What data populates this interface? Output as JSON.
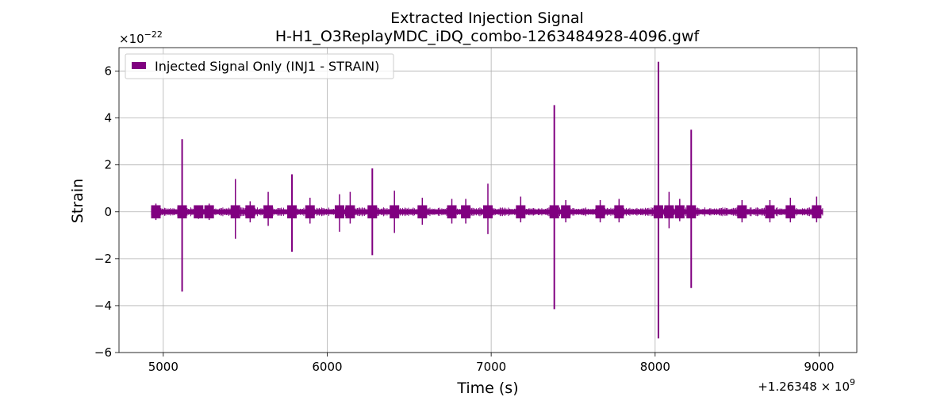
{
  "chart_data": {
    "type": "line",
    "title": "Extracted Injection Signal",
    "subtitle": "H-H1_O3ReplayMDC_iDQ_combo-1263484928-4096.gwf",
    "xlabel": "Time (s)",
    "ylabel": "Strain",
    "x_offset_label": "+1.26348 × 10",
    "x_offset_exponent": "9",
    "y_scale_label": "×10",
    "y_scale_exponent": "−22",
    "xlim": [
      4730,
      9230
    ],
    "ylim": [
      -6.0,
      7.0
    ],
    "x_ticks": [
      5000,
      6000,
      7000,
      8000,
      9000
    ],
    "x_tick_labels": [
      "5000",
      "6000",
      "7000",
      "8000",
      "9000"
    ],
    "y_ticks": [
      -6,
      -4,
      -2,
      0,
      2,
      4,
      6
    ],
    "y_tick_labels": [
      "−6",
      "−4",
      "−2",
      "0",
      "2",
      "4",
      "6"
    ],
    "grid": true,
    "legend_position": "top-left",
    "series": [
      {
        "name": "Injected Signal Only (INJ1 - STRAIN)",
        "color": "#800080",
        "x_range": [
          4928,
          9024
        ],
        "background_amplitude": 0.1,
        "spikes": [
          {
            "x": 4955,
            "max": 0.35,
            "min": -0.35
          },
          {
            "x": 5115,
            "max": 3.1,
            "min": -3.4
          },
          {
            "x": 5215,
            "max": 0.25,
            "min": -0.3
          },
          {
            "x": 5280,
            "max": 0.35,
            "min": -0.35
          },
          {
            "x": 5440,
            "max": 1.4,
            "min": -1.15
          },
          {
            "x": 5530,
            "max": 0.45,
            "min": -0.45
          },
          {
            "x": 5640,
            "max": 0.85,
            "min": -0.6
          },
          {
            "x": 5785,
            "max": 1.6,
            "min": -1.7
          },
          {
            "x": 5895,
            "max": 0.6,
            "min": -0.5
          },
          {
            "x": 6075,
            "max": 0.75,
            "min": -0.85
          },
          {
            "x": 6140,
            "max": 0.85,
            "min": -0.5
          },
          {
            "x": 6275,
            "max": 1.85,
            "min": -1.85
          },
          {
            "x": 6410,
            "max": 0.9,
            "min": -0.9
          },
          {
            "x": 6580,
            "max": 0.6,
            "min": -0.55
          },
          {
            "x": 6760,
            "max": 0.55,
            "min": -0.5
          },
          {
            "x": 6845,
            "max": 0.55,
            "min": -0.5
          },
          {
            "x": 6980,
            "max": 1.2,
            "min": -0.95
          },
          {
            "x": 7180,
            "max": 0.65,
            "min": -0.45
          },
          {
            "x": 7385,
            "max": 4.55,
            "min": -4.15
          },
          {
            "x": 7455,
            "max": 0.5,
            "min": -0.45
          },
          {
            "x": 7665,
            "max": 0.5,
            "min": -0.45
          },
          {
            "x": 7780,
            "max": 0.55,
            "min": -0.45
          },
          {
            "x": 8020,
            "max": 6.4,
            "min": -5.4
          },
          {
            "x": 8085,
            "max": 0.85,
            "min": -0.7
          },
          {
            "x": 8150,
            "max": 0.55,
            "min": -0.4
          },
          {
            "x": 8220,
            "max": 3.5,
            "min": -3.25
          },
          {
            "x": 8530,
            "max": 0.5,
            "min": -0.45
          },
          {
            "x": 8700,
            "max": 0.5,
            "min": -0.45
          },
          {
            "x": 8825,
            "max": 0.6,
            "min": -0.45
          },
          {
            "x": 8985,
            "max": 0.65,
            "min": -0.45
          }
        ]
      }
    ]
  }
}
